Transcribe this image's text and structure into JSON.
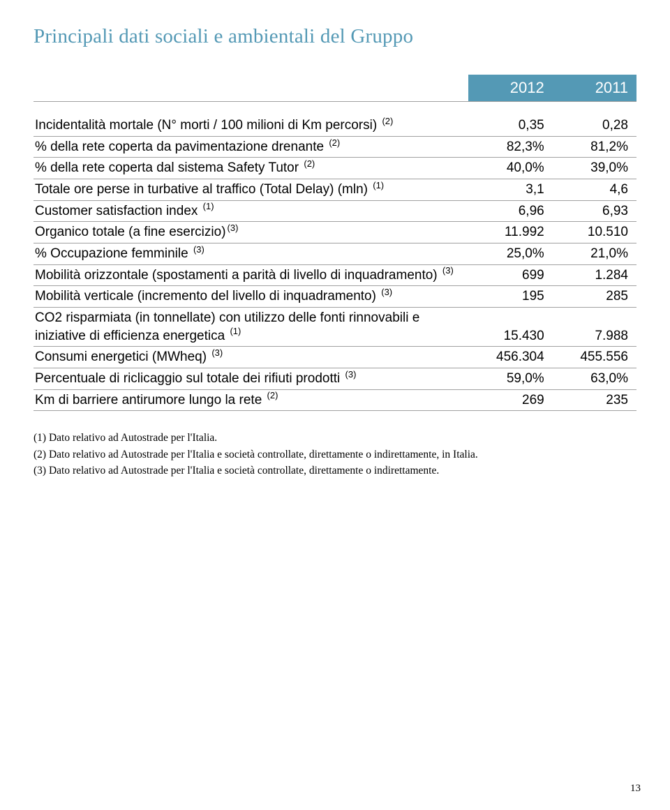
{
  "title": "Principali dati sociali e ambientali del Gruppo",
  "title_color": "#5499b5",
  "table": {
    "header_bg": "#5499b5",
    "header_text_color": "#ffffff",
    "border_color": "#a0a0a0",
    "font_family": "Arial, Helvetica, sans-serif",
    "font_size_pt": 14,
    "years": [
      "2012",
      "2011"
    ],
    "rows": [
      {
        "label": "Incidentalità mortale (N° morti / 100 milioni di Km percorsi)",
        "sup": "(2)",
        "v1": "0,35",
        "v2": "0,28"
      },
      {
        "label": "% della rete coperta da pavimentazione drenante",
        "sup": "(2)",
        "v1": "82,3%",
        "v2": "81,2%"
      },
      {
        "label": "% della rete coperta dal sistema Safety Tutor",
        "sup": "(2)",
        "v1": "40,0%",
        "v2": "39,0%"
      },
      {
        "label": "Totale ore perse in turbative al traffico (Total Delay) (mln)",
        "sup": "(1)",
        "v1": "3,1",
        "v2": "4,6"
      },
      {
        "label": "Customer satisfaction index",
        "sup": "(1)",
        "v1": "6,96",
        "v2": "6,93"
      },
      {
        "label": "Organico totale (a fine esercizio)",
        "sup": "(3)",
        "sup_tight": true,
        "v1": "11.992",
        "v2": "10.510"
      },
      {
        "label": "% Occupazione femminile",
        "sup": "(3)",
        "v1": "25,0%",
        "v2": "21,0%"
      },
      {
        "label": "Mobilità orizzontale (spostamenti a parità di livello di inquadramento)",
        "sup": "(3)",
        "v1": "699",
        "v2": "1.284"
      },
      {
        "label": "Mobilità verticale (incremento del livello di inquadramento)",
        "sup": "(3)",
        "v1": "195",
        "v2": "285"
      },
      {
        "label": "CO2 risparmiata (in tonnellate) con utilizzo delle fonti rinnovabili e iniziative di efficienza energetica",
        "sup": "(1)",
        "v1": "15.430",
        "v2": "7.988"
      },
      {
        "label": "Consumi energetici (MWheq)",
        "sup": "(3)",
        "v1": "456.304",
        "v2": "455.556"
      },
      {
        "label": "Percentuale di riclicaggio sul totale dei rifiuti prodotti",
        "sup": "(3)",
        "v1": "59,0%",
        "v2": "63,0%"
      },
      {
        "label": "Km di barriere antirumore lungo la  rete",
        "sup": "(2)",
        "v1": "269",
        "v2": "235"
      }
    ]
  },
  "footnotes": [
    "(1) Dato relativo ad Autostrade per l'Italia.",
    "(2) Dato relativo ad Autostrade per l'Italia e società controllate, direttamente o indirettamente, in Italia.",
    "(3) Dato relativo ad Autostrade per l'Italia e società controllate, direttamente o indirettamente."
  ],
  "page_number": "13"
}
